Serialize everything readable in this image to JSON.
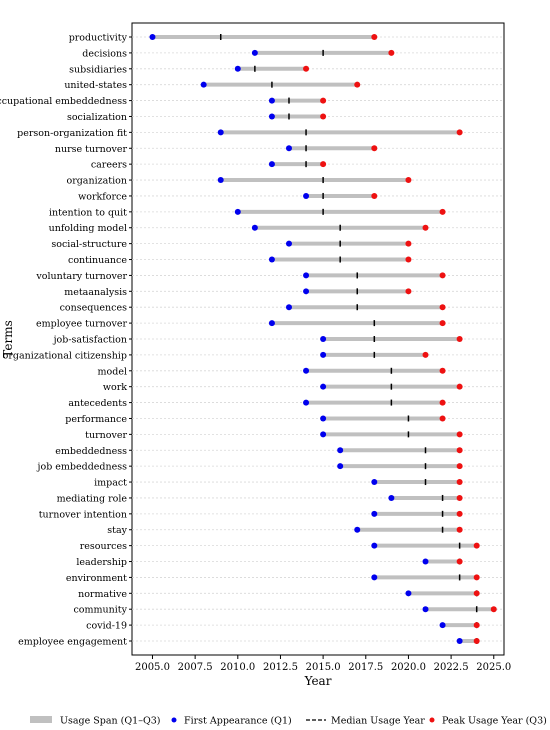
{
  "chart_data": {
    "type": "dumbbell",
    "xlabel": "Year",
    "ylabel": "Terms",
    "xlim": [
      2003.8,
      2025.6
    ],
    "x_ticks": [
      2005.0,
      2007.5,
      2010.0,
      2012.5,
      2015.0,
      2017.5,
      2020.0,
      2022.5,
      2025.0
    ],
    "x_tick_labels": [
      "2005.0",
      "2007.5",
      "2010.0",
      "2012.5",
      "2015.0",
      "2017.5",
      "2020.0",
      "2022.5",
      "2025.0"
    ],
    "grid": "horizontal dotted",
    "legend": {
      "position": "bottom",
      "entries": [
        {
          "key": "span",
          "label": "Usage Span (Q1–Q3)"
        },
        {
          "key": "first",
          "label": "First Appearance (Q1)"
        },
        {
          "key": "median",
          "label": "Median Usage Year"
        },
        {
          "key": "peak",
          "label": "Peak Usage Year (Q3)"
        }
      ]
    },
    "colors": {
      "span": "#c0c0c0",
      "first": "#0000ee",
      "median": "#000000",
      "peak": "#ee1111"
    },
    "terms": [
      {
        "term": "productivity",
        "q1": 2005,
        "median": 2009,
        "q3": 2018
      },
      {
        "term": "decisions",
        "q1": 2011,
        "median": 2015,
        "q3": 2019
      },
      {
        "term": "subsidiaries",
        "q1": 2010,
        "median": 2011,
        "q3": 2014
      },
      {
        "term": "united-states",
        "q1": 2008,
        "median": 2012,
        "q3": 2017
      },
      {
        "term": "occupational embeddedness",
        "q1": 2012,
        "median": 2013,
        "q3": 2015
      },
      {
        "term": "socialization",
        "q1": 2012,
        "median": 2013,
        "q3": 2015
      },
      {
        "term": "person-organization fit",
        "q1": 2009,
        "median": 2014,
        "q3": 2023
      },
      {
        "term": "nurse turnover",
        "q1": 2013,
        "median": 2014,
        "q3": 2018
      },
      {
        "term": "careers",
        "q1": 2012,
        "median": 2014,
        "q3": 2015
      },
      {
        "term": "organization",
        "q1": 2009,
        "median": 2015,
        "q3": 2020
      },
      {
        "term": "workforce",
        "q1": 2014,
        "median": 2015,
        "q3": 2018
      },
      {
        "term": "intention to quit",
        "q1": 2010,
        "median": 2015,
        "q3": 2022
      },
      {
        "term": "unfolding model",
        "q1": 2011,
        "median": 2016,
        "q3": 2021
      },
      {
        "term": "social-structure",
        "q1": 2013,
        "median": 2016,
        "q3": 2020
      },
      {
        "term": "continuance",
        "q1": 2012,
        "median": 2016,
        "q3": 2020
      },
      {
        "term": "voluntary turnover",
        "q1": 2014,
        "median": 2017,
        "q3": 2022
      },
      {
        "term": "metaanalysis",
        "q1": 2014,
        "median": 2017,
        "q3": 2020
      },
      {
        "term": "consequences",
        "q1": 2013,
        "median": 2017,
        "q3": 2022
      },
      {
        "term": "employee turnover",
        "q1": 2012,
        "median": 2018,
        "q3": 2022
      },
      {
        "term": "job-satisfaction",
        "q1": 2015,
        "median": 2018,
        "q3": 2023
      },
      {
        "term": "organizational citizenship",
        "q1": 2015,
        "median": 2018,
        "q3": 2021
      },
      {
        "term": "model",
        "q1": 2014,
        "median": 2019,
        "q3": 2022
      },
      {
        "term": "work",
        "q1": 2015,
        "median": 2019,
        "q3": 2023
      },
      {
        "term": "antecedents",
        "q1": 2014,
        "median": 2019,
        "q3": 2022
      },
      {
        "term": "performance",
        "q1": 2015,
        "median": 2020,
        "q3": 2022
      },
      {
        "term": "turnover",
        "q1": 2015,
        "median": 2020,
        "q3": 2023
      },
      {
        "term": "embeddedness",
        "q1": 2016,
        "median": 2021,
        "q3": 2023
      },
      {
        "term": "job embeddedness",
        "q1": 2016,
        "median": 2021,
        "q3": 2023
      },
      {
        "term": "impact",
        "q1": 2018,
        "median": 2021,
        "q3": 2023
      },
      {
        "term": "mediating role",
        "q1": 2019,
        "median": 2022,
        "q3": 2023
      },
      {
        "term": "turnover intention",
        "q1": 2018,
        "median": 2022,
        "q3": 2023
      },
      {
        "term": "stay",
        "q1": 2017,
        "median": 2022,
        "q3": 2023
      },
      {
        "term": "resources",
        "q1": 2018,
        "median": 2023,
        "q3": 2024
      },
      {
        "term": "leadership",
        "q1": 2021,
        "median": 2023,
        "q3": 2023
      },
      {
        "term": "environment",
        "q1": 2018,
        "median": 2023,
        "q3": 2024
      },
      {
        "term": "normative",
        "q1": 2020,
        "median": 2024,
        "q3": 2024
      },
      {
        "term": "community",
        "q1": 2021,
        "median": 2024,
        "q3": 2025
      },
      {
        "term": "covid-19",
        "q1": 2022,
        "median": 2024,
        "q3": 2024
      },
      {
        "term": "employee engagement",
        "q1": 2023,
        "median": 2024,
        "q3": 2024
      }
    ]
  }
}
